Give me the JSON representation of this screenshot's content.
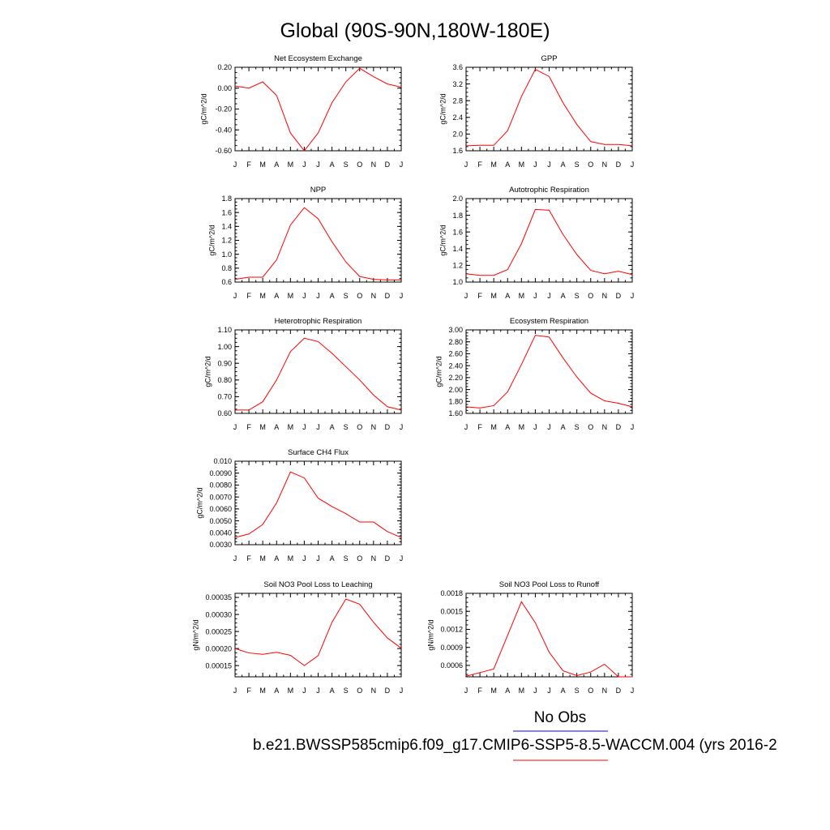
{
  "title": "Global (90S-90N,180W-180E)",
  "legend": {
    "no_obs": "No Obs",
    "no_obs_color": "#0000ff",
    "case_name": "b.e21.BWSSP585cmip6.f09_g17.CMIP6-SSP5-8.5-WACCM.004 (yrs 2016-2",
    "case_color": "#ff0000"
  },
  "chart_data": [
    {
      "type": "line",
      "title": "Net Ecosystem Exchange",
      "ylabel": "gC/m^2/d",
      "x": [
        "J",
        "F",
        "M",
        "A",
        "M",
        "J",
        "J",
        "A",
        "S",
        "O",
        "N",
        "D",
        "J"
      ],
      "values": [
        0.02,
        0.0,
        0.06,
        -0.07,
        -0.43,
        -0.6,
        -0.43,
        -0.14,
        0.06,
        0.19,
        0.11,
        0.04,
        0.01
      ],
      "ylim": [
        -0.6,
        0.2
      ],
      "yticks": [
        -0.6,
        -0.4,
        -0.2,
        0.0,
        0.2
      ],
      "ytick_labels": [
        "-0.60",
        "-0.40",
        "-0.20",
        "0.00",
        "0.20"
      ],
      "color": "#ff0000"
    },
    {
      "type": "line",
      "title": "GPP",
      "ylabel": "gC/m^2/d",
      "x": [
        "J",
        "F",
        "M",
        "A",
        "M",
        "J",
        "J",
        "A",
        "S",
        "O",
        "N",
        "D",
        "J"
      ],
      "values": [
        1.72,
        1.73,
        1.73,
        2.08,
        2.9,
        3.55,
        3.38,
        2.75,
        2.23,
        1.82,
        1.75,
        1.75,
        1.72
      ],
      "ylim": [
        1.6,
        3.6
      ],
      "yticks": [
        1.6,
        2.0,
        2.4,
        2.8,
        3.2,
        3.6
      ],
      "ytick_labels": [
        "1.6",
        "2.0",
        "2.4",
        "2.8",
        "3.2",
        "3.6"
      ],
      "color": "#ff0000"
    },
    {
      "type": "line",
      "title": "NPP",
      "ylabel": "gC/m^2/d",
      "x": [
        "J",
        "F",
        "M",
        "A",
        "M",
        "J",
        "J",
        "A",
        "S",
        "O",
        "N",
        "D",
        "J"
      ],
      "values": [
        0.64,
        0.67,
        0.67,
        0.92,
        1.42,
        1.67,
        1.51,
        1.18,
        0.89,
        0.68,
        0.64,
        0.63,
        0.63
      ],
      "ylim": [
        0.6,
        1.8
      ],
      "yticks": [
        0.6,
        0.8,
        1.0,
        1.2,
        1.4,
        1.6,
        1.8
      ],
      "ytick_labels": [
        "0.6",
        "0.8",
        "1.0",
        "1.2",
        "1.4",
        "1.6",
        "1.8"
      ],
      "color": "#ff0000"
    },
    {
      "type": "line",
      "title": "Autotrophic Respiration",
      "ylabel": "gC/m^2/d",
      "x": [
        "J",
        "F",
        "M",
        "A",
        "M",
        "J",
        "J",
        "A",
        "S",
        "O",
        "N",
        "D",
        "J"
      ],
      "values": [
        1.1,
        1.08,
        1.08,
        1.15,
        1.46,
        1.87,
        1.86,
        1.57,
        1.33,
        1.14,
        1.1,
        1.13,
        1.09
      ],
      "ylim": [
        1.0,
        2.0
      ],
      "yticks": [
        1.0,
        1.2,
        1.4,
        1.6,
        1.8,
        2.0
      ],
      "ytick_labels": [
        "1.0",
        "1.2",
        "1.4",
        "1.6",
        "1.8",
        "2.0"
      ],
      "color": "#ff0000"
    },
    {
      "type": "line",
      "title": "Heterotrophic Respiration",
      "ylabel": "gC/m^2/d",
      "x": [
        "J",
        "F",
        "M",
        "A",
        "M",
        "J",
        "J",
        "A",
        "S",
        "O",
        "N",
        "D",
        "J"
      ],
      "values": [
        0.62,
        0.62,
        0.67,
        0.8,
        0.97,
        1.05,
        1.03,
        0.96,
        0.88,
        0.8,
        0.71,
        0.64,
        0.62
      ],
      "ylim": [
        0.6,
        1.1
      ],
      "yticks": [
        0.6,
        0.7,
        0.8,
        0.9,
        1.0,
        1.1
      ],
      "ytick_labels": [
        "0.60",
        "0.70",
        "0.80",
        "0.90",
        "1.00",
        "1.10"
      ],
      "color": "#ff0000"
    },
    {
      "type": "line",
      "title": "Ecosystem Respiration",
      "ylabel": "gC/m^2/d",
      "x": [
        "J",
        "F",
        "M",
        "A",
        "M",
        "J",
        "J",
        "A",
        "S",
        "O",
        "N",
        "D",
        "J"
      ],
      "values": [
        1.71,
        1.69,
        1.73,
        1.96,
        2.42,
        2.91,
        2.88,
        2.53,
        2.21,
        1.94,
        1.81,
        1.77,
        1.71
      ],
      "ylim": [
        1.6,
        3.0
      ],
      "yticks": [
        1.6,
        1.8,
        2.0,
        2.2,
        2.4,
        2.6,
        2.8,
        3.0
      ],
      "ytick_labels": [
        "1.60",
        "1.80",
        "2.00",
        "2.20",
        "2.40",
        "2.60",
        "2.80",
        "3.00"
      ],
      "color": "#ff0000"
    },
    {
      "type": "line",
      "title": "Surface CH4 Flux",
      "ylabel": "gC/m^2/d",
      "x": [
        "J",
        "F",
        "M",
        "A",
        "M",
        "J",
        "J",
        "A",
        "S",
        "O",
        "N",
        "D",
        "J"
      ],
      "values": [
        0.0036,
        0.0039,
        0.0047,
        0.0065,
        0.0091,
        0.0086,
        0.0069,
        0.0062,
        0.0056,
        0.0049,
        0.0049,
        0.0041,
        0.0036
      ],
      "ylim": [
        0.003,
        0.01
      ],
      "yticks": [
        0.003,
        0.004,
        0.005,
        0.006,
        0.007,
        0.008,
        0.009,
        0.01
      ],
      "ytick_labels": [
        "0.0030",
        "0.0040",
        "0.0050",
        "0.0060",
        "0.0070",
        "0.0080",
        "0.0090",
        "0.010"
      ],
      "color": "#ff0000"
    },
    {
      "type": "line",
      "title": "Soil NO3 Pool Loss to Leaching",
      "ylabel": "gN/m^2/d",
      "x": [
        "J",
        "F",
        "M",
        "A",
        "M",
        "J",
        "J",
        "A",
        "S",
        "O",
        "N",
        "D",
        "J"
      ],
      "values": [
        0.0002,
        0.000187,
        0.000183,
        0.000189,
        0.00018,
        0.00015,
        0.000179,
        0.000277,
        0.000345,
        0.00033,
        0.000277,
        0.000231,
        0.000201
      ],
      "ylim": [
        0.000117,
        0.000362
      ],
      "yticks": [
        0.00015,
        0.0002,
        0.00025,
        0.0003,
        0.00035
      ],
      "ytick_labels": [
        "0.00015",
        "0.00020",
        "0.00025",
        "0.00030",
        "0.00035"
      ],
      "color": "#ff0000"
    },
    {
      "type": "line",
      "title": "Soil NO3 Pool Loss to Runoff",
      "ylabel": "gN/m^2/d",
      "x": [
        "J",
        "F",
        "M",
        "A",
        "M",
        "J",
        "J",
        "A",
        "S",
        "O",
        "N",
        "D",
        "J"
      ],
      "values": [
        0.00042,
        0.00048,
        0.00054,
        0.0011,
        0.00166,
        0.00131,
        0.00082,
        0.00051,
        0.00043,
        0.00049,
        0.00062,
        0.0004,
        0.0004
      ],
      "ylim": [
        0.00041,
        0.0018
      ],
      "yticks": [
        0.0006,
        0.0009,
        0.0012,
        0.0015,
        0.0018
      ],
      "ytick_labels": [
        "0.0006",
        "0.0009",
        "0.0012",
        "0.0015",
        "0.0018"
      ],
      "color": "#ff0000"
    }
  ]
}
